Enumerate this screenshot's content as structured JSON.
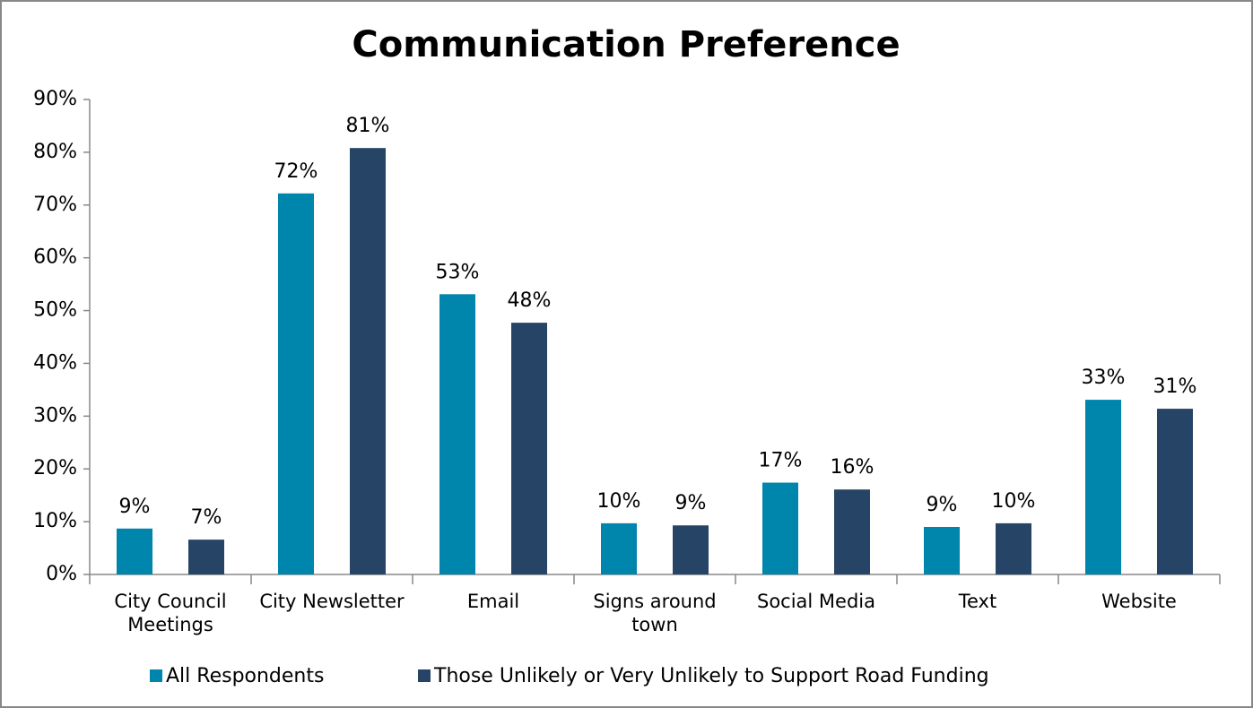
{
  "chart_data": {
    "type": "bar",
    "title": "Communication Preference",
    "categories": [
      "City Council Meetings",
      "City Newsletter",
      "Email",
      "Signs around town",
      "Social Media",
      "Text",
      "Website"
    ],
    "series": [
      {
        "name": "All Respondents",
        "color": "#0085ad",
        "values": [
          8.7,
          72.2,
          53.1,
          9.7,
          17.4,
          9.0,
          33.1
        ],
        "value_labels": [
          "9%",
          "72%",
          "53%",
          "10%",
          "17%",
          "9%",
          "33%"
        ]
      },
      {
        "name": "Those Unlikely or Very Unlikely to Support Road Funding",
        "color": "#264466",
        "values": [
          6.6,
          80.8,
          47.7,
          9.3,
          16.1,
          9.7,
          31.4
        ],
        "value_labels": [
          "7%",
          "81%",
          "48%",
          "9%",
          "16%",
          "10%",
          "31%"
        ]
      }
    ],
    "ylim": [
      0,
      90
    ],
    "yticks": [
      {
        "value": 0,
        "label": "0%"
      },
      {
        "value": 10,
        "label": "10%"
      },
      {
        "value": 20,
        "label": "20%"
      },
      {
        "value": 30,
        "label": "30%"
      },
      {
        "value": 40,
        "label": "40%"
      },
      {
        "value": 50,
        "label": "50%"
      },
      {
        "value": 60,
        "label": "60%"
      },
      {
        "value": 70,
        "label": "70%"
      },
      {
        "value": 80,
        "label": "80%"
      },
      {
        "value": 90,
        "label": "90%"
      }
    ],
    "grid": false,
    "legend": "bottom"
  }
}
